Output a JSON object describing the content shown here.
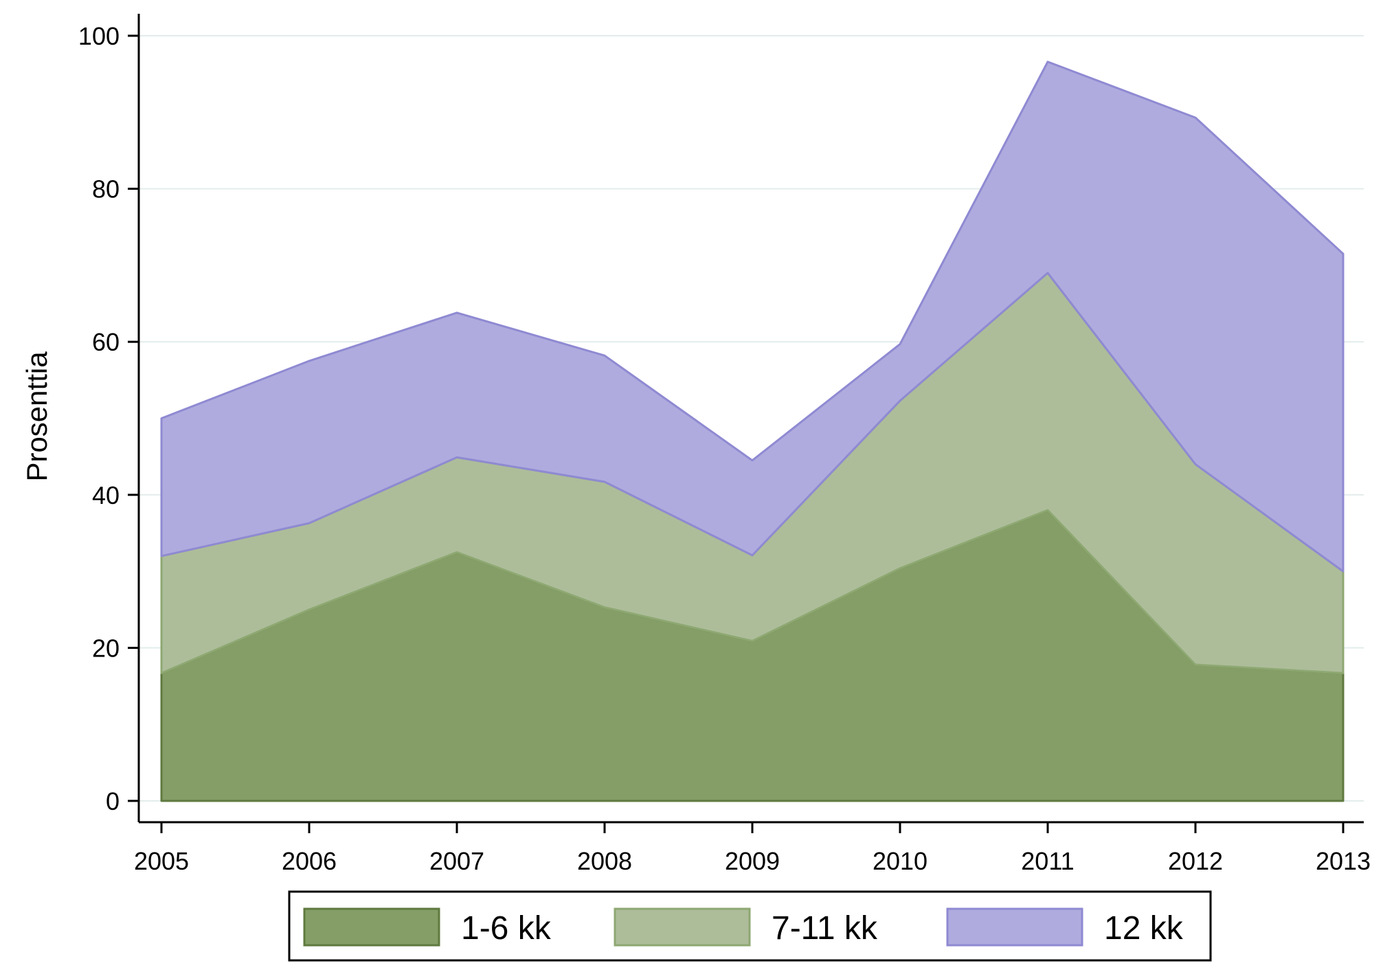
{
  "chart_data": {
    "type": "area",
    "stacked": true,
    "xlabel": "",
    "ylabel": "Prosenttia",
    "x": [
      2005,
      2006,
      2007,
      2008,
      2009,
      2010,
      2011,
      2012,
      2013
    ],
    "xticks": [
      "2005",
      "2006",
      "2007",
      "2008",
      "2009",
      "2010",
      "2011",
      "2012",
      "2013"
    ],
    "yticks": [
      "0",
      "20",
      "40",
      "60",
      "80",
      "100"
    ],
    "ylim": [
      0,
      100
    ],
    "grid": "horizontal",
    "legend_position": "bottom",
    "series": [
      {
        "name": "1-6 kk",
        "color": "#859d66",
        "edge": "#5f7a40",
        "values": [
          16.7,
          25.0,
          32.5,
          25.3,
          20.9,
          30.4,
          38.0,
          17.8,
          16.7
        ]
      },
      {
        "name": "7-11 kk",
        "color": "#adbd9a",
        "edge": "#8ea872",
        "values": [
          15.3,
          11.3,
          12.4,
          16.4,
          11.2,
          21.9,
          31.0,
          26.2,
          13.3
        ]
      },
      {
        "name": "12 kk",
        "color": "#afabde",
        "edge": "#8f8ad2",
        "values": [
          18.0,
          21.2,
          18.9,
          16.5,
          12.4,
          7.4,
          27.6,
          45.3,
          41.5
        ]
      }
    ]
  }
}
